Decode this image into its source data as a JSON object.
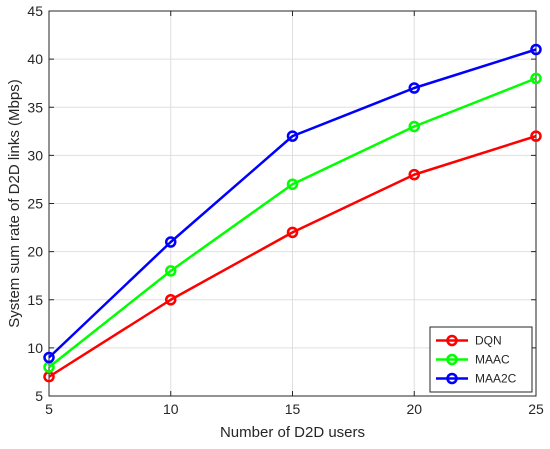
{
  "chart_data": {
    "type": "line",
    "title": "",
    "xlabel": "Number of D2D users",
    "ylabel": "System sum rate of D2D links (Mbps)",
    "x": [
      5,
      10,
      15,
      20,
      25
    ],
    "xlim": [
      5,
      25
    ],
    "ylim": [
      5,
      45
    ],
    "xticks": [
      "5",
      "10",
      "15",
      "20",
      "25"
    ],
    "yticks": [
      "5",
      "10",
      "15",
      "20",
      "25",
      "30",
      "35",
      "40",
      "45"
    ],
    "grid": true,
    "legend_position": "bottom-right",
    "marker": "circle",
    "series": [
      {
        "name": "DQN",
        "color": "#ff0000",
        "values": [
          7,
          15,
          22,
          28,
          32
        ]
      },
      {
        "name": "MAAC",
        "color": "#00ff00",
        "values": [
          8,
          18,
          27,
          33,
          38
        ]
      },
      {
        "name": "MAA2C",
        "color": "#0000ff",
        "values": [
          9,
          21,
          32,
          37,
          41
        ]
      }
    ]
  }
}
